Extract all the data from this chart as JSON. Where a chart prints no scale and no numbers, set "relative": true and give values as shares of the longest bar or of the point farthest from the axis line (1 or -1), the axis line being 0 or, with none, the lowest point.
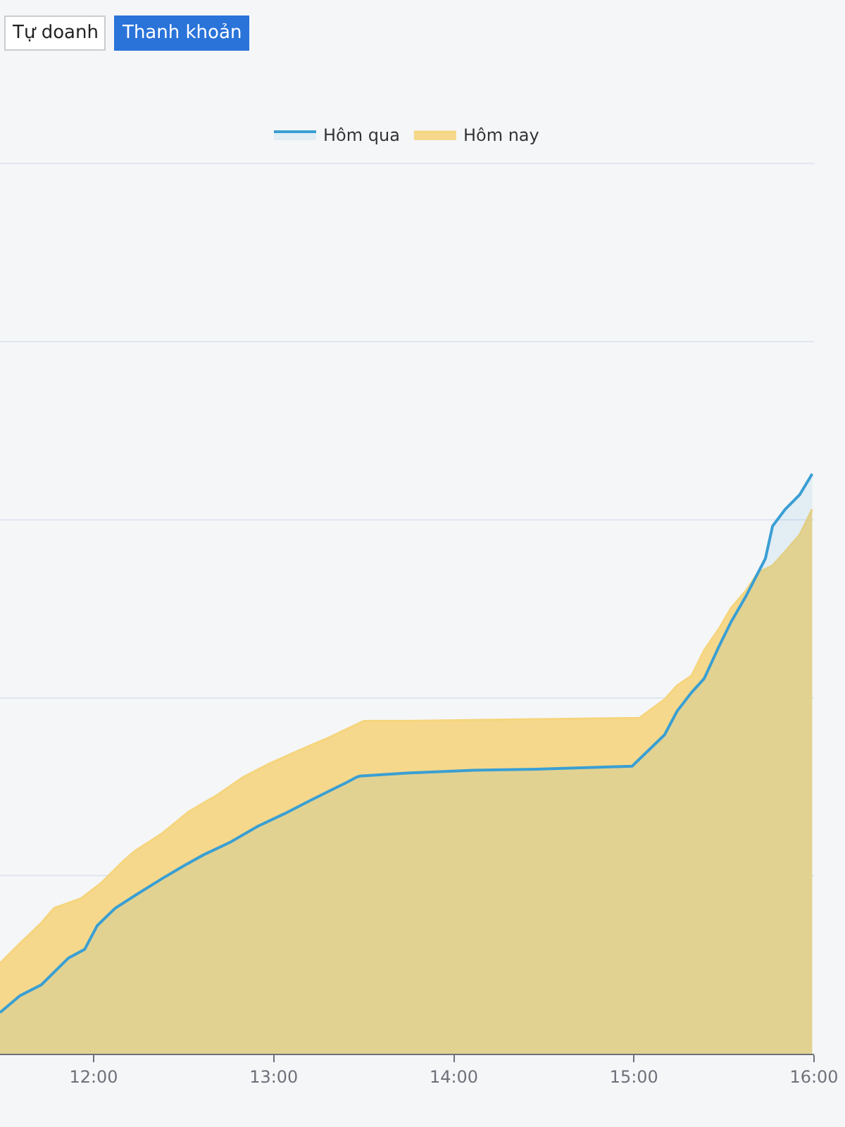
{
  "chart_data": {
    "type": "area",
    "relative": true,
    "legend": "top",
    "grid": "y",
    "annotations": [
      "Tự doanh",
      "Thanh khoản"
    ],
    "xlim": [
      11.48,
      16.0
    ],
    "xticks": [
      {
        "value": 12,
        "label": "12:00"
      },
      {
        "value": 13,
        "label": "13:00"
      },
      {
        "value": 14,
        "label": "14:00"
      },
      {
        "value": 15,
        "label": "15:00"
      },
      {
        "value": 16,
        "label": "16:00"
      }
    ],
    "series": [
      {
        "name": "Hôm qua",
        "color": "#3a9fd3",
        "x": [
          11.48,
          11.59,
          11.71,
          11.86,
          11.95,
          12.02,
          12.12,
          12.23,
          12.38,
          12.5,
          12.61,
          12.76,
          12.91,
          13.06,
          13.21,
          13.32,
          13.4,
          13.46,
          13.48,
          13.74,
          14.11,
          14.49,
          14.99,
          15.09,
          15.17,
          15.24,
          15.32,
          15.39,
          15.47,
          15.54,
          15.62,
          15.69,
          15.73,
          15.77,
          15.84,
          15.92,
          15.99
        ],
        "values": [
          0.071,
          0.1,
          0.119,
          0.165,
          0.18,
          0.221,
          0.251,
          0.273,
          0.302,
          0.324,
          0.343,
          0.365,
          0.392,
          0.414,
          0.438,
          0.455,
          0.467,
          0.477,
          0.479,
          0.484,
          0.489,
          0.491,
          0.496,
          0.526,
          0.55,
          0.591,
          0.623,
          0.647,
          0.701,
          0.745,
          0.788,
          0.83,
          0.854,
          0.91,
          0.939,
          0.964,
          1.0
        ]
      },
      {
        "name": "Hôm nay",
        "color": "#f5d57e",
        "x": [
          11.48,
          11.59,
          11.71,
          11.78,
          11.93,
          12.04,
          12.16,
          12.23,
          12.38,
          12.53,
          12.68,
          12.83,
          12.98,
          13.14,
          13.29,
          13.5,
          13.74,
          14.49,
          15.03,
          15.17,
          15.24,
          15.32,
          15.39,
          15.47,
          15.54,
          15.62,
          15.69,
          15.77,
          15.84,
          15.92,
          15.99
        ],
        "values": [
          0.156,
          0.19,
          0.226,
          0.251,
          0.268,
          0.294,
          0.331,
          0.35,
          0.38,
          0.418,
          0.445,
          0.477,
          0.501,
          0.523,
          0.543,
          0.574,
          0.574,
          0.577,
          0.579,
          0.611,
          0.635,
          0.652,
          0.696,
          0.732,
          0.769,
          0.798,
          0.83,
          0.842,
          0.866,
          0.895,
          0.939
        ]
      }
    ]
  }
}
